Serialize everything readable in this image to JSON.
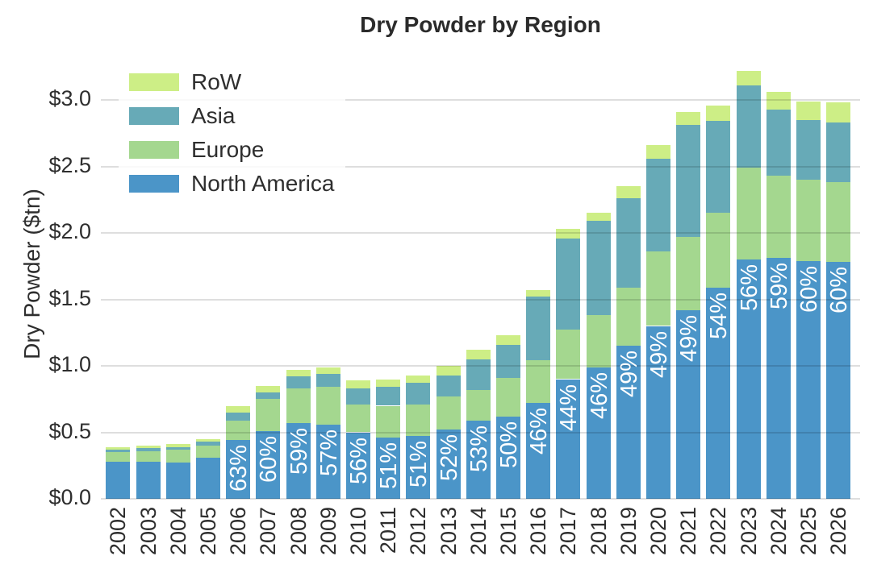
{
  "title": "Dry Powder by Region",
  "ylabel": "Dry Powder ($tn)",
  "colors": {
    "north_america": "#4b95c8",
    "europe": "#a4d78f",
    "asia": "#67aab7",
    "row": "#cdee86",
    "gridline": "#d9d9d9",
    "text": "#2e2e2e",
    "bar_label_text": "#ffffff"
  },
  "legend": {
    "position": "upper-left",
    "items": [
      {
        "label": "RoW",
        "color": "#cdee86"
      },
      {
        "label": "Asia",
        "color": "#67aab7"
      },
      {
        "label": "Europe",
        "color": "#a4d78f"
      },
      {
        "label": "North America",
        "color": "#4b95c8"
      }
    ]
  },
  "chart_data": {
    "type": "bar",
    "stacked": true,
    "title": "Dry Powder by Region",
    "xlabel": "",
    "ylabel": "Dry Powder ($tn)",
    "grid": true,
    "legend_position": "upper left",
    "ylim": [
      0,
      3.39
    ],
    "categories": [
      "2002",
      "2003",
      "2004",
      "2005",
      "2006",
      "2007",
      "2008",
      "2009",
      "2010",
      "2011",
      "2012",
      "2013",
      "2014",
      "2015",
      "2016",
      "2017",
      "2018",
      "2019",
      "2020",
      "2021",
      "2022",
      "2023",
      "2024",
      "2025",
      "2026"
    ],
    "series": [
      {
        "name": "North America",
        "color": "#4b95c8",
        "values": [
          0.28,
          0.28,
          0.27,
          0.31,
          0.44,
          0.51,
          0.57,
          0.56,
          0.5,
          0.46,
          0.47,
          0.52,
          0.59,
          0.62,
          0.72,
          0.9,
          0.99,
          1.15,
          1.3,
          1.42,
          1.59,
          1.8,
          1.81,
          1.79,
          1.78
        ]
      },
      {
        "name": "Europe",
        "color": "#a4d78f",
        "values": [
          0.07,
          0.08,
          0.1,
          0.09,
          0.15,
          0.24,
          0.26,
          0.28,
          0.21,
          0.24,
          0.24,
          0.25,
          0.23,
          0.29,
          0.32,
          0.37,
          0.39,
          0.44,
          0.56,
          0.55,
          0.56,
          0.69,
          0.62,
          0.61,
          0.6
        ]
      },
      {
        "name": "Asia",
        "color": "#67aab7",
        "values": [
          0.02,
          0.02,
          0.02,
          0.03,
          0.06,
          0.05,
          0.09,
          0.1,
          0.12,
          0.14,
          0.16,
          0.16,
          0.23,
          0.25,
          0.48,
          0.69,
          0.71,
          0.67,
          0.7,
          0.84,
          0.69,
          0.62,
          0.5,
          0.45,
          0.45
        ]
      },
      {
        "name": "RoW",
        "color": "#cdee86",
        "values": [
          0.02,
          0.02,
          0.02,
          0.02,
          0.05,
          0.05,
          0.05,
          0.05,
          0.06,
          0.06,
          0.06,
          0.07,
          0.07,
          0.07,
          0.05,
          0.07,
          0.06,
          0.09,
          0.1,
          0.1,
          0.12,
          0.11,
          0.13,
          0.14,
          0.15
        ]
      }
    ],
    "bar_labels": {
      "description": "North America share of total, printed vertically in white inside the bottom (North America) segment",
      "values": [
        null,
        null,
        null,
        null,
        "63%",
        "60%",
        "59%",
        "57%",
        "56%",
        "51%",
        "51%",
        "52%",
        "53%",
        "50%",
        "46%",
        "44%",
        "46%",
        "49%",
        "49%",
        "49%",
        "54%",
        "56%",
        "59%",
        "60%",
        "60%"
      ]
    },
    "yticks": {
      "labels": [
        "$0.0",
        "$0.5",
        "$1.0",
        "$1.5",
        "$2.0",
        "$2.5",
        "$3.0"
      ],
      "values": [
        0,
        0.5,
        1.0,
        1.5,
        2.0,
        2.5,
        3.0
      ]
    },
    "xtick_rotation": 90
  }
}
